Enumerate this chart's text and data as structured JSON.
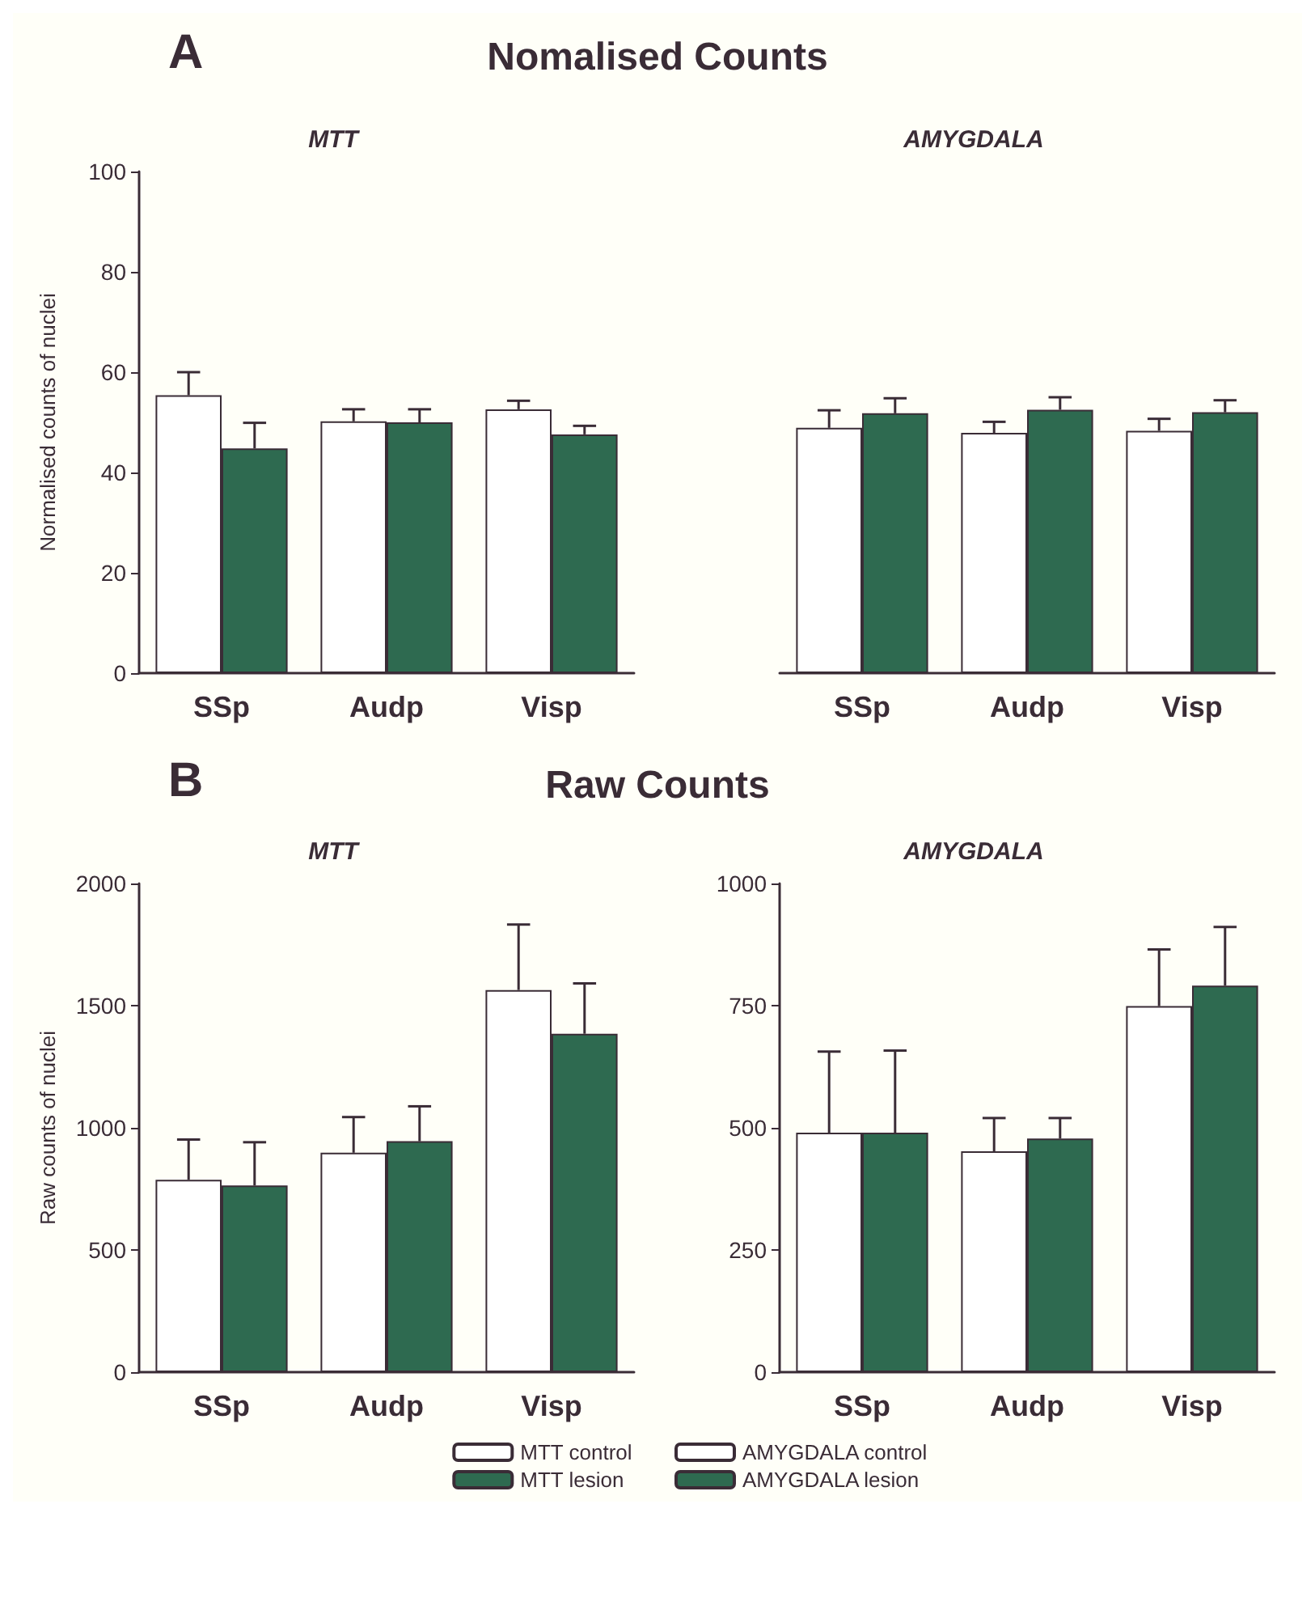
{
  "chart_data": [
    {
      "type": "bar",
      "title": "Nomalised Counts",
      "subtitle": "MTT",
      "annotations": [
        "A"
      ],
      "ylabel": "Normalised counts of nuclei",
      "categories": [
        "SSp",
        "Audp",
        "Visp"
      ],
      "ylim": [
        0,
        100
      ],
      "yticks": [
        0,
        20,
        40,
        60,
        80,
        100
      ],
      "grid": false,
      "series": [
        {
          "color": "#ffffff",
          "values": [
            55.4,
            50.2,
            52.6
          ],
          "errors": [
            4.6,
            2.4,
            1.7
          ]
        },
        {
          "color": "#2e6a50",
          "values": [
            44.8,
            50.0,
            47.6
          ],
          "errors": [
            5.1,
            2.6,
            1.7
          ]
        }
      ]
    },
    {
      "type": "bar",
      "subtitle": "AMYGDALA",
      "categories": [
        "SSp",
        "Audp",
        "Visp"
      ],
      "ylim": [
        0,
        100
      ],
      "tick_labels": "x",
      "grid": false,
      "series": [
        {
          "color": "#ffffff",
          "values": [
            48.9,
            47.9,
            48.3
          ],
          "errors": [
            3.5,
            2.2,
            2.4
          ]
        },
        {
          "color": "#2e6a50",
          "values": [
            51.8,
            52.5,
            52.0
          ],
          "errors": [
            3.0,
            2.5,
            2.4
          ]
        }
      ]
    },
    {
      "type": "bar",
      "title": "Raw Counts",
      "subtitle": "MTT",
      "annotations": [
        "B"
      ],
      "ylabel": "Raw counts of nuclei",
      "categories": [
        "SSp",
        "Audp",
        "Visp"
      ],
      "ylim": [
        0,
        2000
      ],
      "yticks": [
        0,
        500,
        1000,
        1500,
        2000
      ],
      "grid": false,
      "legend": "bottom right",
      "series": [
        {
          "name": "MTT control",
          "color": "#ffffff",
          "values": [
            787,
            898,
            1564
          ],
          "errors": [
            165,
            146,
            268
          ]
        },
        {
          "name": "MTT lesion",
          "color": "#2e6a50",
          "values": [
            764,
            945,
            1385
          ],
          "errors": [
            177,
            143,
            206
          ]
        }
      ]
    },
    {
      "type": "bar",
      "subtitle": "AMYGDALA",
      "categories": [
        "SSp",
        "Audp",
        "Visp"
      ],
      "ylim": [
        0,
        1000
      ],
      "yticks": [
        0,
        250,
        500,
        750,
        1000
      ],
      "grid": false,
      "legend": "bottom left",
      "series": [
        {
          "name": "AMYGDALA control",
          "color": "#ffffff",
          "values": [
            490,
            452,
            749
          ],
          "errors": [
            166,
            68,
            116
          ]
        },
        {
          "name": "AMYGDALA lesion",
          "color": "#2e6a50",
          "values": [
            490,
            478,
            791
          ],
          "errors": [
            168,
            42,
            120
          ]
        }
      ]
    }
  ]
}
